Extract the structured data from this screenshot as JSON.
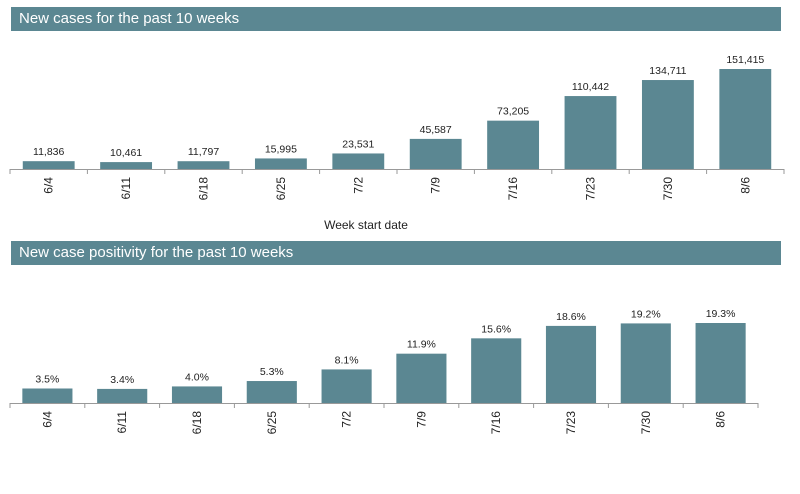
{
  "chart_data": [
    {
      "type": "bar",
      "title": "New cases for the past 10 weeks",
      "xlabel": "Week start date",
      "ylabel": "",
      "categories": [
        "6/4",
        "6/11",
        "6/18",
        "6/25",
        "7/2",
        "7/9",
        "7/16",
        "7/23",
        "7/30",
        "8/6"
      ],
      "values": [
        11836,
        10461,
        11797,
        15995,
        23531,
        45587,
        73205,
        110442,
        134711,
        151415
      ],
      "value_labels": [
        "11,836",
        "10,461",
        "11,797",
        "15,995",
        "23,531",
        "45,587",
        "73,205",
        "110,442",
        "134,711",
        "151,415"
      ],
      "ylim": [
        0,
        151415
      ],
      "grid": false,
      "bar_color": "#5b8792"
    },
    {
      "type": "bar",
      "title": "New case positivity for the past 10 weeks",
      "xlabel": "",
      "ylabel": "",
      "categories": [
        "6/4",
        "6/11",
        "6/18",
        "6/25",
        "7/2",
        "7/9",
        "7/16",
        "7/23",
        "7/30",
        "8/6"
      ],
      "values": [
        3.5,
        3.4,
        4.0,
        5.3,
        8.1,
        11.9,
        15.6,
        18.6,
        19.2,
        19.3
      ],
      "value_labels": [
        "3.5%",
        "3.4%",
        "4.0%",
        "5.3%",
        "8.1%",
        "11.9%",
        "15.6%",
        "18.6%",
        "19.2%",
        "19.3%"
      ],
      "ylim": [
        0,
        19.3
      ],
      "grid": false,
      "bar_color": "#5b8792"
    }
  ]
}
